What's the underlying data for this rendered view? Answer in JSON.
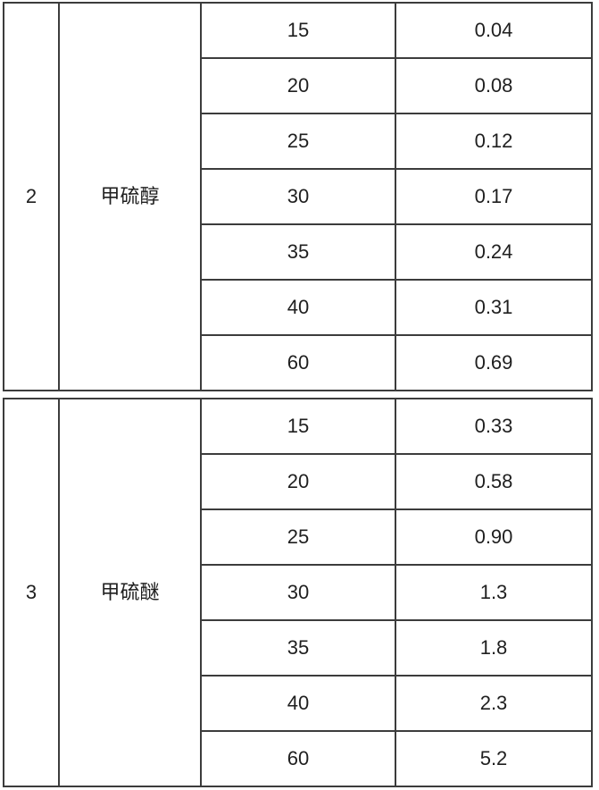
{
  "table": {
    "sections": [
      {
        "index": "2",
        "compound": "甲硫醇",
        "rows": [
          {
            "temperature": "15",
            "value": "0.04"
          },
          {
            "temperature": "20",
            "value": "0.08"
          },
          {
            "temperature": "25",
            "value": "0.12"
          },
          {
            "temperature": "30",
            "value": "0.17"
          },
          {
            "temperature": "35",
            "value": "0.24"
          },
          {
            "temperature": "40",
            "value": "0.31"
          },
          {
            "temperature": "60",
            "value": "0.69"
          }
        ]
      },
      {
        "index": "3",
        "compound": "甲硫醚",
        "rows": [
          {
            "temperature": "15",
            "value": "0.33"
          },
          {
            "temperature": "20",
            "value": "0.58"
          },
          {
            "temperature": "25",
            "value": "0.90"
          },
          {
            "temperature": "30",
            "value": "1.3"
          },
          {
            "temperature": "35",
            "value": "1.8"
          },
          {
            "temperature": "40",
            "value": "2.3"
          },
          {
            "temperature": "60",
            "value": "5.2"
          }
        ]
      }
    ]
  },
  "colors": {
    "border": "#3c3c3c",
    "text": "#1f1f1f",
    "background": "#ffffff"
  }
}
